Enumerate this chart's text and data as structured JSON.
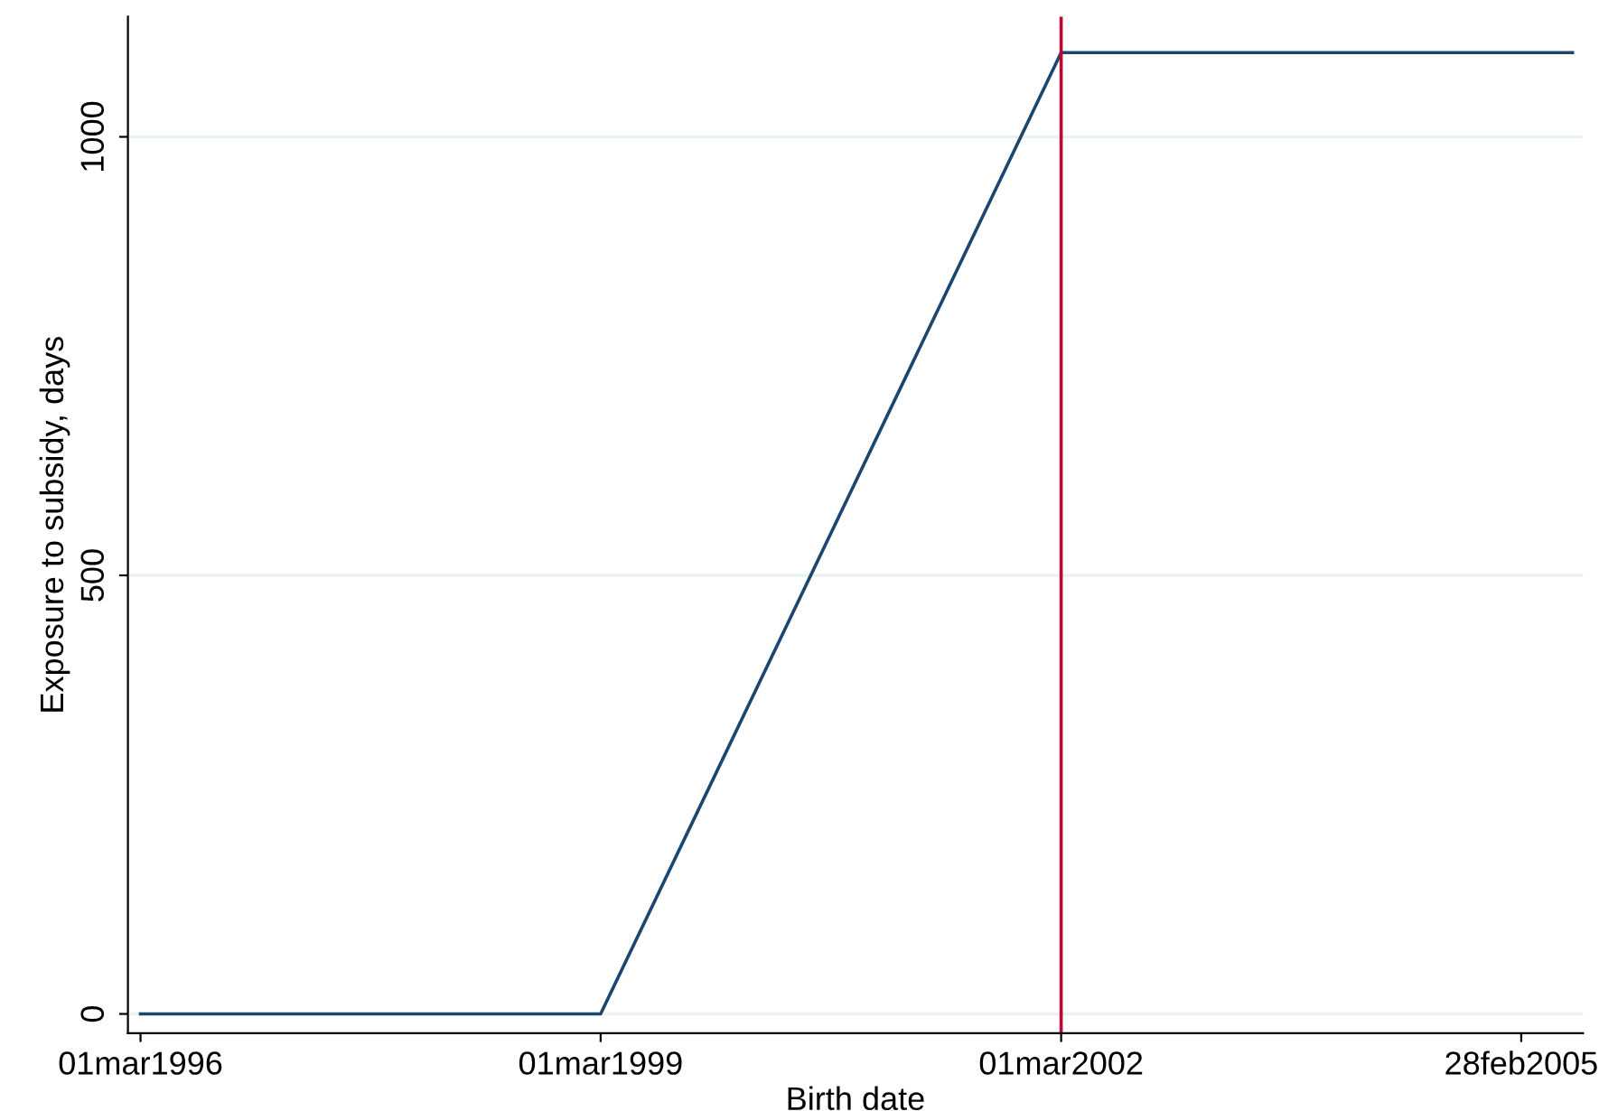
{
  "chart_data": {
    "type": "line",
    "xlabel": "Birth date",
    "ylabel": "Exposure to subsidy, days",
    "x": [
      "1996-03-01",
      "1999-03-01",
      "2002-03-01",
      "2005-06-30"
    ],
    "series": [
      {
        "color": "#1a476f",
        "values": [
          0,
          0,
          1096,
          1096
        ]
      }
    ],
    "xlim": [
      "1996-01-31",
      "2005-07-25"
    ],
    "ylim": [
      -22,
      1137
    ],
    "xticks": [
      {
        "value": "1996-03-01",
        "label": "01mar1996"
      },
      {
        "value": "1999-03-01",
        "label": "01mar1999"
      },
      {
        "value": "2002-03-01",
        "label": "01mar2002"
      },
      {
        "value": "2005-02-28",
        "label": "28feb2005"
      }
    ],
    "yticks": [
      0,
      500,
      1000
    ],
    "ref_lines": [
      {
        "axis": "x",
        "value": "2002-03-01",
        "color": "#c10534"
      }
    ],
    "grid": "y",
    "marker": "none",
    "line_style": "solid",
    "legend": false
  }
}
